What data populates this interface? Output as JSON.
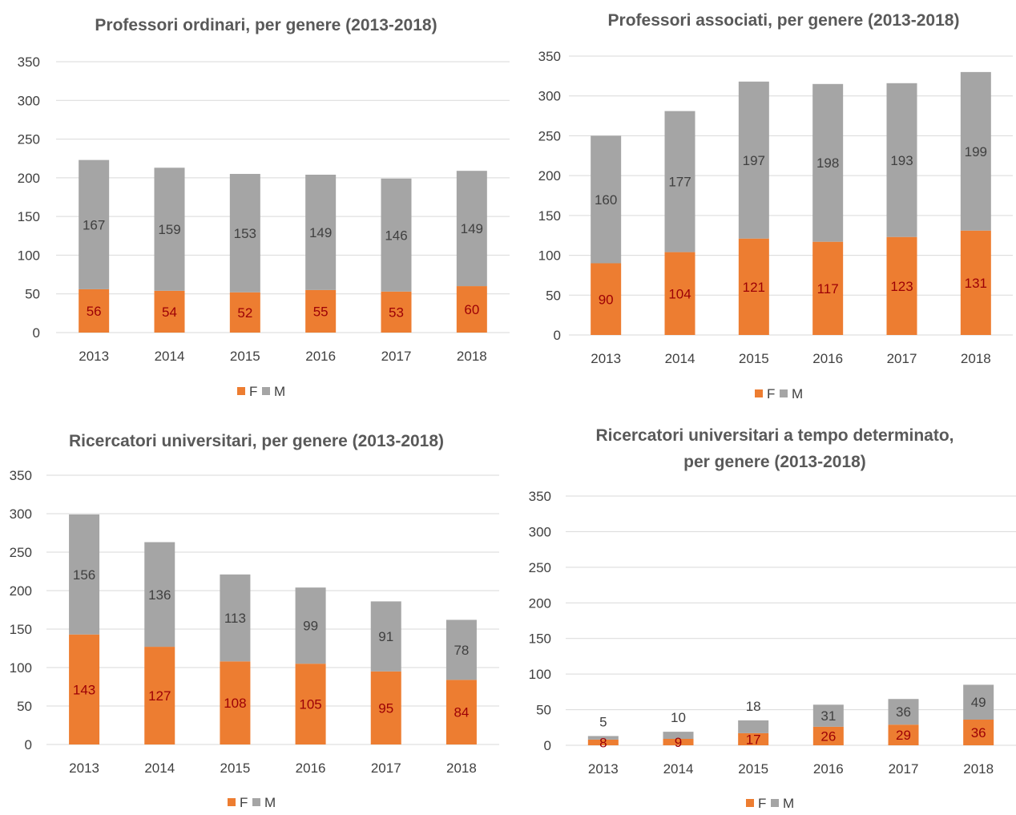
{
  "colors": {
    "F": "#ed7d31",
    "M": "#a5a5a5",
    "grid": "#d9d9d9",
    "f_label": "#9c0006",
    "m_label": "#404040"
  },
  "chart_data": [
    {
      "type": "bar",
      "stacked": true,
      "title": [
        "Professori ordinari, per genere (2013-2018)"
      ],
      "categories": [
        "2013",
        "2014",
        "2015",
        "2016",
        "2017",
        "2018"
      ],
      "series": [
        {
          "name": "F",
          "values": [
            56,
            54,
            52,
            55,
            53,
            60
          ]
        },
        {
          "name": "M",
          "values": [
            167,
            159,
            153,
            149,
            146,
            149
          ]
        }
      ],
      "ylim": [
        0,
        350
      ],
      "yticks": [
        "0",
        "50",
        "100",
        "150",
        "200",
        "250",
        "300",
        "350"
      ],
      "grid": true,
      "legend": "bottom"
    },
    {
      "type": "bar",
      "stacked": true,
      "title": [
        "Professori associati, per genere (2013-2018)"
      ],
      "categories": [
        "2013",
        "2014",
        "2015",
        "2016",
        "2017",
        "2018"
      ],
      "series": [
        {
          "name": "F",
          "values": [
            90,
            104,
            121,
            117,
            123,
            131
          ]
        },
        {
          "name": "M",
          "values": [
            160,
            177,
            197,
            198,
            193,
            199
          ]
        }
      ],
      "ylim": [
        0,
        350
      ],
      "yticks": [
        "0",
        "50",
        "100",
        "150",
        "200",
        "250",
        "300",
        "350"
      ],
      "grid": true,
      "legend": "bottom"
    },
    {
      "type": "bar",
      "stacked": true,
      "title": [
        "Ricercatori universitari, per genere (2013-2018)"
      ],
      "categories": [
        "2013",
        "2014",
        "2015",
        "2016",
        "2017",
        "2018"
      ],
      "series": [
        {
          "name": "F",
          "values": [
            143,
            127,
            108,
            105,
            95,
            84
          ]
        },
        {
          "name": "M",
          "values": [
            156,
            136,
            113,
            99,
            91,
            78
          ]
        }
      ],
      "ylim": [
        0,
        350
      ],
      "yticks": [
        "0",
        "50",
        "100",
        "150",
        "200",
        "250",
        "300",
        "350"
      ],
      "grid": true,
      "legend": "bottom"
    },
    {
      "type": "bar",
      "stacked": true,
      "title": [
        "Ricercatori universitari a tempo determinato,",
        "per genere (2013-2018)"
      ],
      "categories": [
        "2013",
        "2014",
        "2015",
        "2016",
        "2017",
        "2018"
      ],
      "series": [
        {
          "name": "F",
          "values": [
            8,
            9,
            17,
            26,
            29,
            36
          ]
        },
        {
          "name": "M",
          "values": [
            5,
            10,
            18,
            31,
            36,
            49
          ]
        }
      ],
      "ylim": [
        0,
        350
      ],
      "yticks": [
        "0",
        "50",
        "100",
        "150",
        "200",
        "250",
        "300",
        "350"
      ],
      "grid": true,
      "legend": "bottom"
    }
  ]
}
